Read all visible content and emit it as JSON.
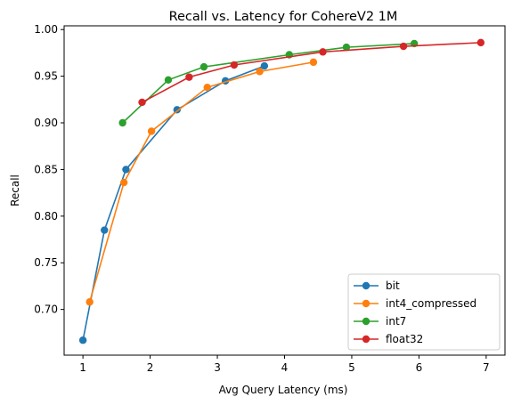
{
  "chart_data": {
    "type": "line",
    "title": "Recall vs. Latency for CohereV2 1M",
    "xlabel": "Avg Query Latency (ms)",
    "ylabel": "Recall",
    "xlim": [
      0.72,
      7.28
    ],
    "ylim": [
      0.651,
      1.004
    ],
    "xticks": [
      1,
      2,
      3,
      4,
      5,
      6,
      7
    ],
    "yticks": [
      0.7,
      0.75,
      0.8,
      0.85,
      0.9,
      0.95,
      1.0
    ],
    "xtick_labels": [
      "1",
      "2",
      "3",
      "4",
      "5",
      "6",
      "7"
    ],
    "ytick_labels": [
      "0.70",
      "0.75",
      "0.80",
      "0.85",
      "0.90",
      "0.95",
      "1.00"
    ],
    "grid": false,
    "legend_position": "lower-right",
    "series": [
      {
        "name": "bit",
        "color": "#1f77b4",
        "x": [
          1.0,
          1.32,
          1.64,
          2.4,
          3.12,
          3.7
        ],
        "y": [
          0.667,
          0.785,
          0.85,
          0.914,
          0.945,
          0.961
        ]
      },
      {
        "name": "int4_compressed",
        "color": "#ff7f0e",
        "x": [
          1.1,
          1.61,
          2.02,
          2.85,
          3.63,
          4.43
        ],
        "y": [
          0.708,
          0.836,
          0.891,
          0.938,
          0.955,
          0.965
        ]
      },
      {
        "name": "int7",
        "color": "#2ca02c",
        "x": [
          1.59,
          2.27,
          2.8,
          4.07,
          4.92,
          5.93
        ],
        "y": [
          0.9,
          0.946,
          0.96,
          0.973,
          0.981,
          0.985
        ]
      },
      {
        "name": "float32",
        "color": "#d62728",
        "x": [
          1.88,
          2.58,
          3.25,
          4.57,
          5.77,
          6.92
        ],
        "y": [
          0.922,
          0.949,
          0.962,
          0.976,
          0.982,
          0.986
        ]
      }
    ]
  }
}
